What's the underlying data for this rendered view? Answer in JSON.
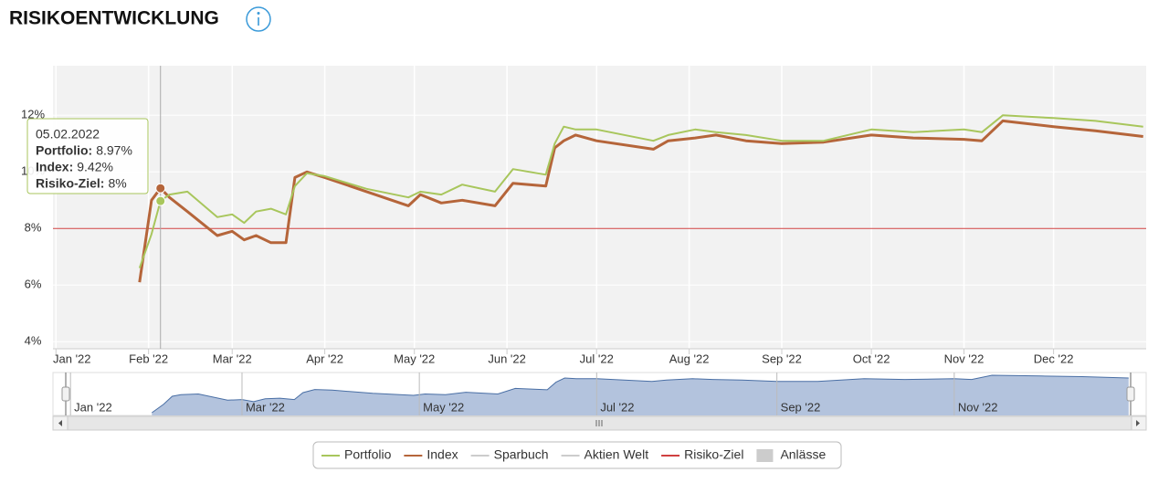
{
  "chart_data": {
    "type": "line",
    "title": "RISIKOENTWICKLUNG",
    "x": [
      "29.01.2022",
      "02.02.2022",
      "05.02.2022",
      "08.02.2022",
      "14.02.2022",
      "24.02.2022",
      "01.03.2022",
      "05.03.2022",
      "09.03.2022",
      "14.03.2022",
      "19.03.2022",
      "22.03.2022",
      "26.03.2022",
      "01.04.2022",
      "15.04.2022",
      "29.04.2022",
      "03.05.2022",
      "10.05.2022",
      "17.05.2022",
      "28.05.2022",
      "03.06.2022",
      "14.06.2022",
      "17.06.2022",
      "20.06.2022",
      "24.06.2022",
      "01.07.2022",
      "20.07.2022",
      "25.07.2022",
      "03.08.2022",
      "10.08.2022",
      "20.08.2022",
      "01.09.2022",
      "15.09.2022",
      "01.10.2022",
      "15.10.2022",
      "01.11.2022",
      "07.11.2022",
      "14.11.2022",
      "01.12.2022",
      "15.12.2022",
      "31.12.2022"
    ],
    "series": [
      {
        "name": "Portfolio",
        "color": "#a8c65c",
        "values": [
          6.6,
          7.8,
          8.97,
          9.2,
          9.3,
          8.4,
          8.5,
          8.2,
          8.6,
          8.7,
          8.5,
          9.5,
          9.95,
          9.85,
          9.4,
          9.1,
          9.3,
          9.2,
          9.55,
          9.3,
          10.1,
          9.9,
          11.0,
          11.6,
          11.5,
          11.5,
          11.1,
          11.3,
          11.5,
          11.4,
          11.3,
          11.1,
          11.1,
          11.5,
          11.4,
          11.5,
          11.4,
          12.0,
          11.9,
          11.8,
          11.6
        ]
      },
      {
        "name": "Index",
        "color": "#b5653a",
        "values": [
          6.1,
          9.0,
          9.42,
          9.1,
          8.6,
          7.75,
          7.9,
          7.6,
          7.75,
          7.5,
          7.5,
          9.8,
          10.0,
          9.8,
          9.3,
          8.8,
          9.2,
          8.9,
          9.0,
          8.8,
          9.6,
          9.5,
          10.85,
          11.1,
          11.3,
          11.1,
          10.8,
          11.1,
          11.2,
          11.3,
          11.1,
          11.0,
          11.05,
          11.3,
          11.2,
          11.15,
          11.1,
          11.8,
          11.6,
          11.45,
          11.25
        ]
      }
    ],
    "target": {
      "name": "Risiko-Ziel",
      "value": 8,
      "color": "#d04040"
    },
    "hidden_series": [
      "Sparbuch",
      "Aktien Welt"
    ],
    "events_label": "Anlässe",
    "xlim": [
      "31.12.2021",
      "01.01.2023"
    ],
    "xticks": [
      {
        "value": "01.01.2022",
        "label": "Jan '22"
      },
      {
        "value": "01.02.2022",
        "label": "Feb '22"
      },
      {
        "value": "01.03.2022",
        "label": "Mar '22"
      },
      {
        "value": "01.04.2022",
        "label": "Apr '22"
      },
      {
        "value": "01.05.2022",
        "label": "May '22"
      },
      {
        "value": "01.06.2022",
        "label": "Jun '22"
      },
      {
        "value": "01.07.2022",
        "label": "Jul '22"
      },
      {
        "value": "01.08.2022",
        "label": "Aug '22"
      },
      {
        "value": "01.09.2022",
        "label": "Sep '22"
      },
      {
        "value": "01.10.2022",
        "label": "Oct '22"
      },
      {
        "value": "01.11.2022",
        "label": "Nov '22"
      },
      {
        "value": "01.12.2022",
        "label": "Dec '22"
      }
    ],
    "ylim": [
      3.75,
      13.75
    ],
    "yticks": [
      {
        "value": 4,
        "label": "4%"
      },
      {
        "value": 6,
        "label": "6%"
      },
      {
        "value": 8,
        "label": "8%"
      },
      {
        "value": 10,
        "label": "10%"
      },
      {
        "value": 12,
        "label": "12%"
      }
    ],
    "grid": true,
    "tooltip": {
      "index": 2,
      "date": "05.02.2022",
      "items": [
        {
          "name": "Portfolio:",
          "value_label": "8.97%"
        },
        {
          "name": "Index:",
          "value_label": "9.42%"
        },
        {
          "name": "Risiko-Ziel:",
          "value_label": "8%"
        }
      ]
    }
  }
}
